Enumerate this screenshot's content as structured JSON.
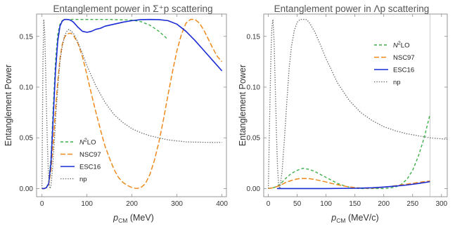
{
  "chart_data": [
    {
      "type": "line",
      "title": "Entanglement power in Σ⁺p scattering",
      "xlabel_main": "p",
      "xlabel_sub": "CM",
      "xlabel_unit": " (MeV)",
      "ylabel": "Entanglement Power",
      "xlim": [
        -12,
        410
      ],
      "ylim": [
        -0.008,
        0.172
      ],
      "xticks": [
        0,
        100,
        200,
        300,
        400
      ],
      "yticks": [
        0.0,
        0.05,
        0.1,
        0.15
      ],
      "ytick_labels": [
        "0.00",
        "0.05",
        "0.10",
        "0.15"
      ],
      "grid": false,
      "legend_position": "lower-left",
      "series": [
        {
          "name": "N²LO",
          "legend_main": "N",
          "legend_sup": "2",
          "legend_rest": "LO",
          "color": "#3cb04a",
          "dash": "4,3",
          "width": 1.4,
          "x": [
            0,
            5,
            10,
            15,
            20,
            25,
            30,
            35,
            40,
            45,
            50,
            55,
            60,
            70,
            80,
            100,
            150,
            200,
            220,
            240,
            260,
            280
          ],
          "y": [
            0.0,
            0.0,
            0.001,
            0.006,
            0.03,
            0.08,
            0.125,
            0.152,
            0.162,
            0.1655,
            0.1665,
            0.1667,
            0.1667,
            0.1667,
            0.1667,
            0.1667,
            0.1667,
            0.166,
            0.1645,
            0.161,
            0.155,
            0.147
          ]
        },
        {
          "name": "NSC97",
          "legend_main": "NSC97",
          "color": "#ee8a1c",
          "dash": "7,3",
          "width": 1.5,
          "x": [
            0,
            5,
            10,
            15,
            20,
            25,
            30,
            35,
            40,
            45,
            50,
            55,
            60,
            65,
            70,
            80,
            90,
            100,
            110,
            120,
            130,
            140,
            150,
            160,
            170,
            180,
            190,
            200,
            210,
            220,
            230,
            240,
            250,
            260,
            270,
            280,
            290,
            300,
            310,
            320,
            330,
            340,
            350,
            360,
            370,
            380,
            390,
            400
          ],
          "y": [
            0.0,
            0.0,
            0.001,
            0.004,
            0.018,
            0.045,
            0.078,
            0.105,
            0.128,
            0.142,
            0.149,
            0.152,
            0.153,
            0.153,
            0.151,
            0.143,
            0.13,
            0.112,
            0.093,
            0.075,
            0.058,
            0.042,
            0.03,
            0.019,
            0.011,
            0.006,
            0.003,
            0.001,
            0.0,
            0.001,
            0.005,
            0.014,
            0.028,
            0.046,
            0.068,
            0.092,
            0.115,
            0.136,
            0.152,
            0.163,
            0.1667,
            0.1667,
            0.163,
            0.156,
            0.147,
            0.138,
            0.13,
            0.125
          ]
        },
        {
          "name": "ESC16",
          "legend_main": "ESC16",
          "color": "#1a2bd6",
          "dash": "",
          "width": 1.6,
          "x": [
            0,
            5,
            10,
            15,
            20,
            25,
            30,
            35,
            40,
            45,
            50,
            55,
            60,
            65,
            70,
            80,
            90,
            100,
            110,
            120,
            130,
            140,
            160,
            180,
            200,
            220,
            240,
            260,
            280,
            300,
            320,
            340,
            360,
            380,
            400
          ],
          "y": [
            0.0,
            0.0,
            0.001,
            0.005,
            0.025,
            0.07,
            0.115,
            0.145,
            0.16,
            0.165,
            0.1667,
            0.1667,
            0.1665,
            0.1655,
            0.164,
            0.159,
            0.155,
            0.154,
            0.155,
            0.157,
            0.158,
            0.16,
            0.162,
            0.164,
            0.1655,
            0.1665,
            0.1667,
            0.1665,
            0.1655,
            0.162,
            0.155,
            0.146,
            0.136,
            0.126,
            0.116
          ]
        },
        {
          "name": "np",
          "legend_main": "np",
          "color": "#666666",
          "dash": "1.4,2",
          "width": 1.3,
          "x": [
            0,
            2,
            4,
            6,
            8,
            10,
            12,
            14,
            16,
            18,
            20,
            24,
            28,
            32,
            36,
            40,
            45,
            50,
            55,
            60,
            70,
            80,
            90,
            100,
            120,
            140,
            160,
            180,
            200,
            220,
            240,
            260,
            280,
            300,
            320,
            340,
            360,
            380,
            400
          ],
          "y": [
            0.0,
            0.12,
            0.1667,
            0.155,
            0.12,
            0.08,
            0.045,
            0.018,
            0.004,
            0.0,
            0.003,
            0.022,
            0.05,
            0.08,
            0.105,
            0.125,
            0.14,
            0.15,
            0.155,
            0.157,
            0.153,
            0.144,
            0.133,
            0.121,
            0.101,
            0.085,
            0.073,
            0.065,
            0.059,
            0.055,
            0.052,
            0.05,
            0.048,
            0.047,
            0.046,
            0.0458,
            0.0456,
            0.0455,
            0.0455
          ]
        }
      ]
    },
    {
      "type": "line",
      "title": "Entanglement power in Λp scattering",
      "xlabel_main": "p",
      "xlabel_sub": "CM",
      "xlabel_unit": " (MeV/c)",
      "ylabel": "Entanglement Power",
      "xlim": [
        -8,
        310
      ],
      "ylim": [
        -0.008,
        0.172
      ],
      "xticks": [
        0,
        50,
        100,
        150,
        200,
        250,
        300
      ],
      "yticks": [
        0.0,
        0.05,
        0.1,
        0.15
      ],
      "ytick_labels": [
        "0.00",
        "0.05",
        "0.10",
        "0.15"
      ],
      "grid": false,
      "vline_x": 280,
      "legend_position": "upper-right",
      "series": [
        {
          "name": "N²LO",
          "legend_main": "N",
          "legend_sup": "2",
          "legend_rest": "LO",
          "color": "#3cb04a",
          "dash": "4,3",
          "width": 1.4,
          "x": [
            0,
            10,
            20,
            30,
            40,
            50,
            60,
            70,
            80,
            90,
            100,
            110,
            120,
            130,
            140,
            150,
            160,
            170,
            180,
            190,
            200,
            210,
            220,
            230,
            240,
            250,
            260,
            270,
            280
          ],
          "y": [
            0.0,
            0.001,
            0.004,
            0.01,
            0.015,
            0.018,
            0.02,
            0.019,
            0.017,
            0.014,
            0.011,
            0.008,
            0.005,
            0.003,
            0.0015,
            0.0005,
            0.0,
            0.0,
            0.0,
            0.0,
            0.0,
            0.0005,
            0.0015,
            0.004,
            0.009,
            0.018,
            0.032,
            0.05,
            0.073
          ]
        },
        {
          "name": "NSC97",
          "legend_main": "NSC97",
          "color": "#ee8a1c",
          "dash": "7,3",
          "width": 1.5,
          "x": [
            0,
            10,
            20,
            30,
            40,
            50,
            60,
            70,
            80,
            90,
            100,
            110,
            120,
            130,
            140,
            150,
            160,
            170,
            180,
            190,
            200,
            210,
            220,
            230,
            240,
            250,
            260,
            270,
            280
          ],
          "y": [
            0.0,
            0.001,
            0.003,
            0.006,
            0.008,
            0.0095,
            0.01,
            0.0098,
            0.009,
            0.0078,
            0.0065,
            0.005,
            0.0038,
            0.0026,
            0.0016,
            0.001,
            0.0005,
            0.0003,
            0.0004,
            0.0008,
            0.0014,
            0.002,
            0.0028,
            0.0036,
            0.0044,
            0.0052,
            0.006,
            0.0068,
            0.0075
          ]
        },
        {
          "name": "ESC16",
          "legend_main": "ESC16",
          "color": "#1a2bd6",
          "dash": "",
          "width": 1.6,
          "x": [
            15,
            50,
            100,
            150,
            180,
            200,
            220,
            240,
            260,
            280
          ],
          "y": [
            0.0,
            0.0,
            0.0,
            0.0003,
            0.0008,
            0.0015,
            0.0024,
            0.0035,
            0.005,
            0.0068
          ]
        },
        {
          "name": "np",
          "legend_main": "np",
          "color": "#666666",
          "dash": "1.4,2",
          "width": 1.3,
          "x": [
            0,
            2,
            4,
            6,
            8,
            10,
            12,
            14,
            16,
            18,
            20,
            24,
            28,
            32,
            36,
            40,
            45,
            50,
            55,
            60,
            65,
            70,
            80,
            90,
            100,
            120,
            140,
            160,
            180,
            200,
            220,
            240,
            260,
            280,
            300,
            310
          ],
          "y": [
            0.0,
            0.06,
            0.12,
            0.158,
            0.1667,
            0.145,
            0.1,
            0.055,
            0.02,
            0.003,
            0.0,
            0.018,
            0.05,
            0.085,
            0.118,
            0.14,
            0.156,
            0.164,
            0.1667,
            0.1667,
            0.1667,
            0.1645,
            0.155,
            0.142,
            0.128,
            0.104,
            0.087,
            0.075,
            0.067,
            0.061,
            0.057,
            0.054,
            0.052,
            0.05,
            0.049,
            0.0485
          ]
        }
      ]
    }
  ]
}
